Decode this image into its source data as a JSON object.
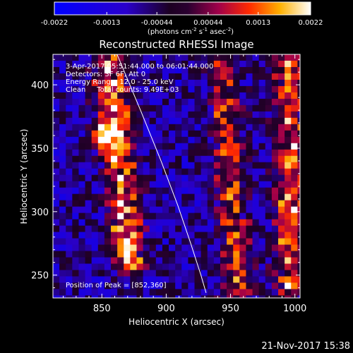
{
  "colorbar": {
    "tick_labels": [
      "-0.0022",
      "-0.0013",
      "-0.00044",
      "0.00044",
      "0.0013",
      "0.0022"
    ],
    "range": [
      -0.0022,
      0.0022
    ],
    "units_label_parts": [
      "(photons cm",
      "-2",
      " s",
      "-1",
      " asec",
      "-2",
      ")"
    ]
  },
  "chart_data": {
    "type": "heatmap",
    "title": "Reconstructed RHESSI Image",
    "xlabel": "Heliocentric X (arcsec)",
    "ylabel": "Heliocentric Y (arcsec)",
    "xlim": [
      812,
      1004
    ],
    "ylim": [
      232,
      424
    ],
    "x_ticks": [
      "850",
      "900",
      "950",
      "1000"
    ],
    "x_tick_values": [
      850,
      900,
      950,
      1000
    ],
    "y_ticks": [
      "250",
      "300",
      "350",
      "400"
    ],
    "y_tick_values": [
      250,
      300,
      350,
      400
    ],
    "grid": false,
    "limb_curve": [
      [
        861,
        426
      ],
      [
        880,
        380
      ],
      [
        896,
        340
      ],
      [
        909,
        305
      ],
      [
        919,
        275
      ],
      [
        927,
        250
      ],
      [
        931,
        236
      ]
    ],
    "bright_ridges": [
      {
        "x0": 855,
        "y0": 416,
        "x1": 872,
        "y1": 262,
        "peak": 0.0022
      },
      {
        "x0": 944,
        "y0": 424,
        "x1": 955,
        "y1": 240,
        "peak": 0.0015
      },
      {
        "x0": 996,
        "y0": 424,
        "x1": 996,
        "y1": 240,
        "peak": 0.0018
      }
    ],
    "peak_position": [
      852,
      360
    ]
  },
  "annotations": {
    "line1": "3-Apr-2017 05:51:44.000 to 06:01:44.000",
    "line2": "Detectors: 3F 6F, Att 0",
    "line3": "Energy Range: 12.0 - 25.0 keV",
    "line4": "Clean     Total counts: 9.49E+03",
    "peak_text": "Position of Peak = [852,360]"
  },
  "footer": {
    "datetime": "21-Nov-2017 15:38"
  }
}
